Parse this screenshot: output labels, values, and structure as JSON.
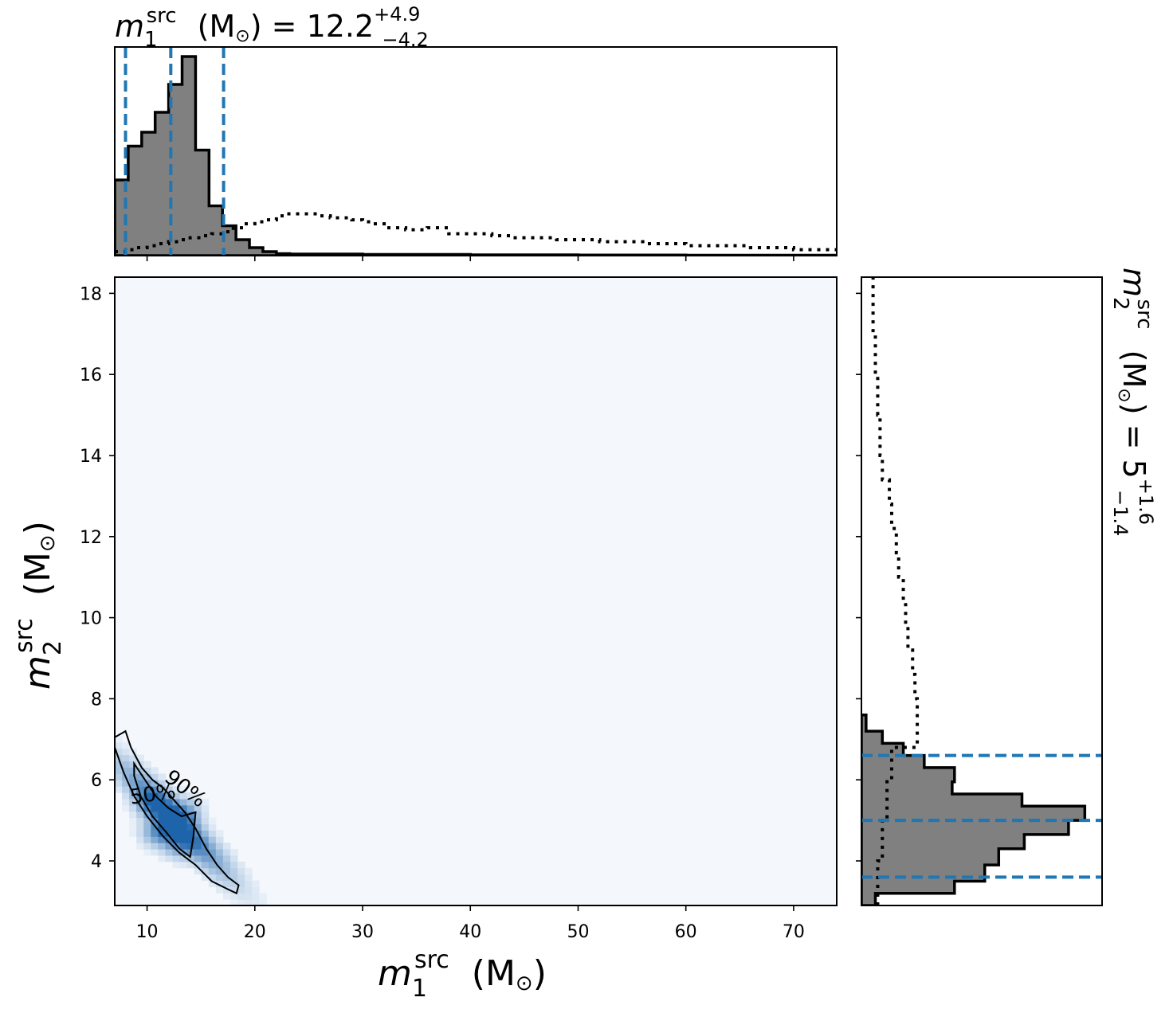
{
  "chart_data": {
    "type": "corner",
    "x_param": {
      "symbol": "m",
      "sub": "1",
      "sup": "src",
      "unit": "(M",
      "unit_close": ")"
    },
    "y_param": {
      "symbol": "m",
      "sub": "2",
      "sup": "src",
      "unit": "(M",
      "unit_close": ")"
    },
    "top_title": {
      "prefix": "m",
      "sub": "1",
      "sup": "src",
      "unit": "(M",
      "unit_close": ")",
      "eq": "=",
      "median": "12.2",
      "plus": "+4.9",
      "minus": "−4.2"
    },
    "right_title": {
      "prefix": "m",
      "sub": "2",
      "sup": "src",
      "unit": "(M",
      "unit_close": ")",
      "eq": "=",
      "median": "5",
      "plus": "+1.6",
      "minus": "−1.4"
    },
    "xlim": [
      7.0,
      74.0
    ],
    "ylim": [
      2.9,
      18.4
    ],
    "x_ticks": [
      10,
      20,
      30,
      40,
      50,
      60,
      70
    ],
    "y_ticks": [
      4,
      6,
      8,
      10,
      12,
      14,
      16,
      18
    ],
    "x_quantiles": [
      8.0,
      12.2,
      17.1
    ],
    "y_quantiles": [
      3.6,
      5.0,
      6.6
    ],
    "contour_labels": [
      "90%",
      "50%"
    ],
    "contour90": [
      [
        7.0,
        7.05
      ],
      [
        8.0,
        7.2
      ],
      [
        8.5,
        6.8
      ],
      [
        9.5,
        6.3
      ],
      [
        10.5,
        6.0
      ],
      [
        11.5,
        5.8
      ],
      [
        12.5,
        5.5
      ],
      [
        13.5,
        5.2
      ],
      [
        14.5,
        4.8
      ],
      [
        15.5,
        4.3
      ],
      [
        16.5,
        3.9
      ],
      [
        17.5,
        3.6
      ],
      [
        18.5,
        3.4
      ],
      [
        18.3,
        3.2
      ],
      [
        17.5,
        3.3
      ],
      [
        16.0,
        3.5
      ],
      [
        14.5,
        3.9
      ],
      [
        13.0,
        4.2
      ],
      [
        11.5,
        4.6
      ],
      [
        10.0,
        5.1
      ],
      [
        8.8,
        5.6
      ],
      [
        7.8,
        6.2
      ],
      [
        7.0,
        6.8
      ]
    ],
    "contour50": [
      [
        8.8,
        6.4
      ],
      [
        9.8,
        6.0
      ],
      [
        10.8,
        5.6
      ],
      [
        12.0,
        5.3
      ],
      [
        13.2,
        5.1
      ],
      [
        14.5,
        5.2
      ],
      [
        14.3,
        4.6
      ],
      [
        14.0,
        4.1
      ],
      [
        13.0,
        4.3
      ],
      [
        11.8,
        4.7
      ],
      [
        10.5,
        5.1
      ],
      [
        9.4,
        5.6
      ],
      [
        8.8,
        6.1
      ]
    ],
    "heat_peaks": [
      [
        13.5,
        5.2
      ],
      [
        12.0,
        4.8
      ],
      [
        11.0,
        4.7
      ],
      [
        10.5,
        5.4
      ],
      [
        13.0,
        4.4
      ]
    ],
    "x_hist_posterior": {
      "edges": [
        7.0,
        8.25,
        9.5,
        10.75,
        12.0,
        13.25,
        14.5,
        15.75,
        17.0,
        18.25,
        19.5,
        20.75,
        22.0,
        23.25,
        30,
        40,
        50,
        60,
        74
      ],
      "heights": [
        0.38,
        0.55,
        0.62,
        0.72,
        0.86,
        1.0,
        0.53,
        0.25,
        0.15,
        0.08,
        0.04,
        0.02,
        0.01,
        0.008,
        0.006,
        0.004,
        0.003,
        0.002
      ]
    },
    "x_hist_prior": {
      "x": [
        7,
        8,
        9,
        10,
        11,
        12,
        13,
        14,
        15,
        16,
        17,
        18,
        19,
        20,
        21,
        22,
        23,
        24,
        25,
        26,
        27,
        28,
        29,
        30,
        31,
        32,
        34,
        36,
        38,
        40,
        42,
        44,
        46,
        48,
        50,
        52,
        54,
        56,
        58,
        60,
        62,
        64,
        66,
        68,
        70,
        72,
        74
      ],
      "y": [
        0.02,
        0.03,
        0.04,
        0.05,
        0.06,
        0.07,
        0.08,
        0.09,
        0.1,
        0.11,
        0.12,
        0.14,
        0.16,
        0.17,
        0.18,
        0.2,
        0.21,
        0.21,
        0.21,
        0.2,
        0.19,
        0.19,
        0.18,
        0.17,
        0.16,
        0.14,
        0.13,
        0.14,
        0.11,
        0.11,
        0.1,
        0.09,
        0.09,
        0.08,
        0.08,
        0.07,
        0.07,
        0.06,
        0.06,
        0.05,
        0.05,
        0.05,
        0.04,
        0.04,
        0.03,
        0.03,
        0.02
      ]
    },
    "y_hist_posterior": {
      "edges": [
        2.9,
        3.2,
        3.5,
        3.9,
        4.3,
        4.65,
        5.0,
        5.35,
        5.65,
        5.95,
        6.3,
        6.6,
        6.9,
        7.2,
        7.6
      ],
      "widths": [
        0.06,
        0.4,
        0.53,
        0.59,
        0.7,
        0.89,
        0.96,
        0.69,
        0.39,
        0.4,
        0.27,
        0.18,
        0.09,
        0.02
      ]
    },
    "y_hist_prior": {
      "y": [
        2.9,
        4,
        5,
        6,
        6.8,
        7.4,
        8.0,
        8.6,
        9.2,
        9.8,
        10.4,
        11.0,
        11.6,
        12.2,
        12.8,
        13.4,
        14.0,
        15,
        16,
        17,
        18.4
      ],
      "w": [
        0.07,
        0.09,
        0.11,
        0.13,
        0.24,
        0.24,
        0.23,
        0.22,
        0.2,
        0.19,
        0.18,
        0.16,
        0.15,
        0.13,
        0.12,
        0.09,
        0.08,
        0.07,
        0.06,
        0.05,
        0.03
      ]
    },
    "colors": {
      "posterior": "#808080",
      "quantile": "#1f77b4",
      "heat_max": "#1e64aa",
      "heat_min": "#f4f8fd"
    }
  }
}
